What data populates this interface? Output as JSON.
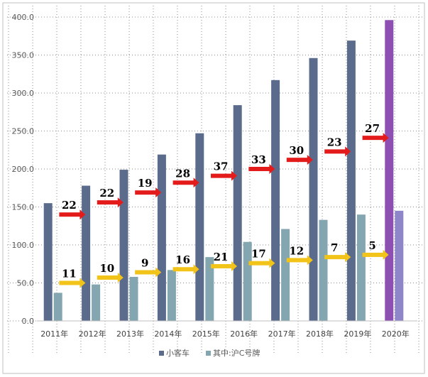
{
  "chart_data": {
    "type": "bar",
    "categories": [
      "2011年",
      "2012年",
      "2013年",
      "2014年",
      "2015年",
      "2016年",
      "2017年",
      "2018年",
      "2019年",
      "2020年"
    ],
    "series": [
      {
        "name": "小客车",
        "values": [
          155,
          178,
          199,
          219,
          247,
          284,
          317,
          346,
          369,
          396
        ],
        "color": "#5B6B8C"
      },
      {
        "name": "其中:沪C号牌",
        "values": [
          37,
          48,
          58,
          67,
          84,
          104,
          121,
          133,
          140,
          145
        ],
        "color": "#84A6B0"
      }
    ],
    "highlight": {
      "category": "2020年",
      "colors": [
        "#8E4FB3",
        "#8F86C9"
      ]
    },
    "y_ticks": [
      "0.0",
      "50.0",
      "100.0",
      "150.0",
      "200.0",
      "250.0",
      "300.0",
      "350.0",
      "400.0"
    ],
    "ylim": [
      0,
      400
    ],
    "grid": "dotted",
    "legend_position": "bottom",
    "annotations": {
      "red_arrows": [
        {
          "between": [
            "2011年",
            "2012年"
          ],
          "value": 140,
          "label": "22"
        },
        {
          "between": [
            "2012年",
            "2013年"
          ],
          "value": 156,
          "label": "22"
        },
        {
          "between": [
            "2013年",
            "2014年"
          ],
          "value": 169,
          "label": "19"
        },
        {
          "between": [
            "2014年",
            "2015年"
          ],
          "value": 182,
          "label": "28"
        },
        {
          "between": [
            "2015年",
            "2016年"
          ],
          "value": 191,
          "label": "37"
        },
        {
          "between": [
            "2016年",
            "2017年"
          ],
          "value": 200,
          "label": "33"
        },
        {
          "between": [
            "2017年",
            "2018年"
          ],
          "value": 212,
          "label": "30"
        },
        {
          "between": [
            "2018年",
            "2019年"
          ],
          "value": 223,
          "label": "23"
        },
        {
          "between": [
            "2019年",
            "2020年"
          ],
          "value": 241,
          "label": "27"
        }
      ],
      "yellow_arrows": [
        {
          "between": [
            "2011年",
            "2012年"
          ],
          "value": 50,
          "label": "11"
        },
        {
          "between": [
            "2012年",
            "2013年"
          ],
          "value": 57,
          "label": "10"
        },
        {
          "between": [
            "2013年",
            "2014年"
          ],
          "value": 64,
          "label": "9"
        },
        {
          "between": [
            "2014年",
            "2015年"
          ],
          "value": 68,
          "label": "16"
        },
        {
          "between": [
            "2015年",
            "2016年"
          ],
          "value": 72,
          "label": "21"
        },
        {
          "between": [
            "2016年",
            "2017年"
          ],
          "value": 76,
          "label": "17"
        },
        {
          "between": [
            "2017年",
            "2018年"
          ],
          "value": 80,
          "label": "12"
        },
        {
          "between": [
            "2018年",
            "2019年"
          ],
          "value": 84,
          "label": "7"
        },
        {
          "between": [
            "2019年",
            "2020年"
          ],
          "value": 87,
          "label": "5"
        }
      ],
      "red_color": "#E41B1B",
      "yellow_color": "#F2C318"
    }
  }
}
